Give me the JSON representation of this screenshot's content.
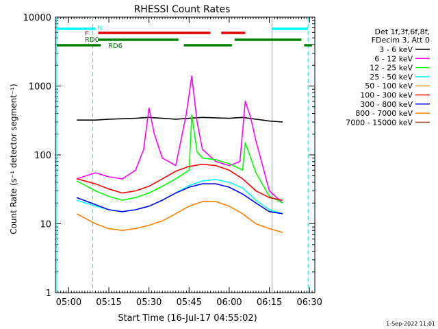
{
  "chart_data": {
    "type": "line",
    "title": "RHESSI Count Rates",
    "xlabel": "Start Time (16-Jul-17 04:55:02)",
    "ylabel": "Count Rate (s⁻¹ detector segment⁻¹)",
    "y_scale": "log",
    "ylim": [
      1,
      10000
    ],
    "xlim": [
      "04:55:02",
      "06:32:00"
    ],
    "x_ticks": [
      "05:00",
      "05:15",
      "05:30",
      "05:45",
      "06:00",
      "06:15",
      "06:30"
    ],
    "y_ticks": [
      "1",
      "10",
      "100",
      "1000",
      "10000"
    ],
    "grid": false,
    "legend_position": "right",
    "legend_header": [
      "Det 1f,3f,6f,8f,",
      "FDecim 3, Att 0"
    ],
    "series": [
      {
        "name": "3 - 6 keV",
        "color": "#000000",
        "x": [
          "05:03",
          "05:10",
          "05:15",
          "05:25",
          "05:30",
          "05:35",
          "05:40",
          "05:45",
          "05:50",
          "05:55",
          "06:00",
          "06:05",
          "06:10",
          "06:15",
          "06:20"
        ],
        "y": [
          320,
          320,
          330,
          340,
          350,
          340,
          330,
          340,
          350,
          345,
          340,
          350,
          330,
          310,
          300
        ]
      },
      {
        "name": "6 - 12 keV",
        "color": "#ff00ff",
        "x": [
          "05:03",
          "05:10",
          "05:15",
          "05:20",
          "05:25",
          "05:28",
          "05:30",
          "05:32",
          "05:35",
          "05:40",
          "05:44",
          "05:46",
          "05:48",
          "05:50",
          "05:55",
          "06:00",
          "06:04",
          "06:06",
          "06:08",
          "06:10",
          "06:15",
          "06:20"
        ],
        "y": [
          45,
          55,
          48,
          45,
          60,
          120,
          480,
          200,
          90,
          70,
          400,
          1400,
          300,
          120,
          80,
          70,
          80,
          600,
          350,
          160,
          30,
          20
        ]
      },
      {
        "name": "12 - 25 keV",
        "color": "#00ff00",
        "x": [
          "05:03",
          "05:10",
          "05:15",
          "05:20",
          "05:25",
          "05:30",
          "05:35",
          "05:40",
          "05:45",
          "05:46",
          "05:48",
          "05:50",
          "05:55",
          "06:00",
          "06:05",
          "06:06",
          "06:10",
          "06:15",
          "06:20"
        ],
        "y": [
          42,
          30,
          25,
          22,
          24,
          28,
          35,
          45,
          60,
          380,
          110,
          90,
          85,
          75,
          60,
          150,
          55,
          25,
          20
        ]
      },
      {
        "name": "25 - 50 keV",
        "color": "#00ffff",
        "x": [
          "05:03",
          "05:10",
          "05:15",
          "05:20",
          "05:25",
          "05:30",
          "05:35",
          "05:40",
          "05:45",
          "05:50",
          "05:55",
          "06:00",
          "06:05",
          "06:10",
          "06:15",
          "06:20"
        ],
        "y": [
          22,
          18,
          16,
          15,
          16,
          18,
          22,
          28,
          36,
          42,
          44,
          40,
          33,
          22,
          16,
          14
        ]
      },
      {
        "name": "50 - 100 keV",
        "color": "#ffa500",
        "x": [],
        "y": []
      },
      {
        "name": "100 - 300 keV",
        "color": "#ff0000",
        "x": [
          "05:03",
          "05:10",
          "05:15",
          "05:20",
          "05:25",
          "05:30",
          "05:35",
          "05:40",
          "05:45",
          "05:50",
          "05:55",
          "06:00",
          "06:05",
          "06:10",
          "06:15",
          "06:20"
        ],
        "y": [
          45,
          38,
          32,
          28,
          30,
          35,
          45,
          58,
          68,
          73,
          70,
          60,
          45,
          30,
          24,
          22
        ]
      },
      {
        "name": "300 - 800 keV",
        "color": "#0000ff",
        "x": [
          "05:03",
          "05:10",
          "05:15",
          "05:20",
          "05:25",
          "05:30",
          "05:35",
          "05:40",
          "05:45",
          "05:50",
          "05:55",
          "06:00",
          "06:05",
          "06:10",
          "06:15",
          "06:20"
        ],
        "y": [
          24,
          19,
          16,
          15,
          16,
          18,
          22,
          28,
          34,
          38,
          38,
          34,
          27,
          20,
          15,
          14
        ]
      },
      {
        "name": "800 - 7000 keV",
        "color": "#ff7f00",
        "x": [
          "05:03",
          "05:10",
          "05:15",
          "05:20",
          "05:25",
          "05:30",
          "05:35",
          "05:40",
          "05:45",
          "05:50",
          "05:55",
          "06:00",
          "06:05",
          "06:10",
          "06:15",
          "06:20"
        ],
        "y": [
          14,
          10,
          8.5,
          8,
          8.5,
          9.5,
          11,
          14,
          18,
          21,
          21,
          18,
          14,
          10,
          8.5,
          7.5
        ]
      },
      {
        "name": "7000 - 15000 keV",
        "color": "#a0522d",
        "x": [],
        "y": []
      }
    ],
    "vertical_lines": [
      {
        "x": "04:55:30",
        "color": "#00e5e5",
        "style": "solid"
      },
      {
        "x": "05:09:00",
        "color": "#00e5e5",
        "style": "dashed"
      },
      {
        "x": "06:16:00",
        "color": "#00e5e5",
        "style": "solid"
      },
      {
        "x": "06:29:30",
        "color": "#00e5e5",
        "style": "dashed"
      }
    ],
    "flag_bars": [
      {
        "label": "N",
        "color": "#00ffff",
        "segments": [
          [
            "04:55:30",
            "05:10:00"
          ],
          [
            "06:16:00",
            "06:29:30"
          ]
        ]
      },
      {
        "label": "F",
        "color": "#e00000",
        "segments": [
          [
            "05:11:00",
            "05:53:00"
          ],
          [
            "05:57:00",
            "06:06:00"
          ]
        ]
      },
      {
        "label": "RD0",
        "color": "#008000",
        "segments": [
          [
            "05:11:00",
            "05:41:00"
          ],
          [
            "06:02:00",
            "06:27:00"
          ]
        ]
      },
      {
        "label": "RD6",
        "color": "#008000",
        "segments": [
          [
            "04:55:30",
            "05:12:00"
          ],
          [
            "05:43:00",
            "06:01:00"
          ],
          [
            "06:28:00",
            "06:31:00"
          ]
        ]
      }
    ]
  },
  "footer": "1-Sep-2022 11:01"
}
